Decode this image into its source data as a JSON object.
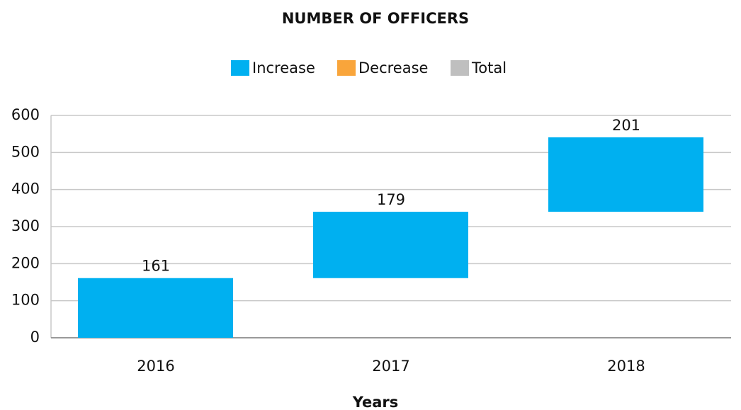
{
  "chart_data": {
    "type": "waterfall",
    "title": "NUMBER OF OFFICERS",
    "x_label": "Years",
    "legend": [
      {
        "name": "Increase",
        "color": "#00b0f0"
      },
      {
        "name": "Decrease",
        "color": "#f9a53b"
      },
      {
        "name": "Total",
        "color": "#bfbfbf"
      }
    ],
    "categories": [
      "2016",
      "2017",
      "2018"
    ],
    "values": [
      161,
      179,
      201
    ],
    "ylim": [
      0,
      600
    ],
    "yticks": [
      0,
      100,
      200,
      300,
      400,
      500,
      600
    ],
    "grid": true
  }
}
